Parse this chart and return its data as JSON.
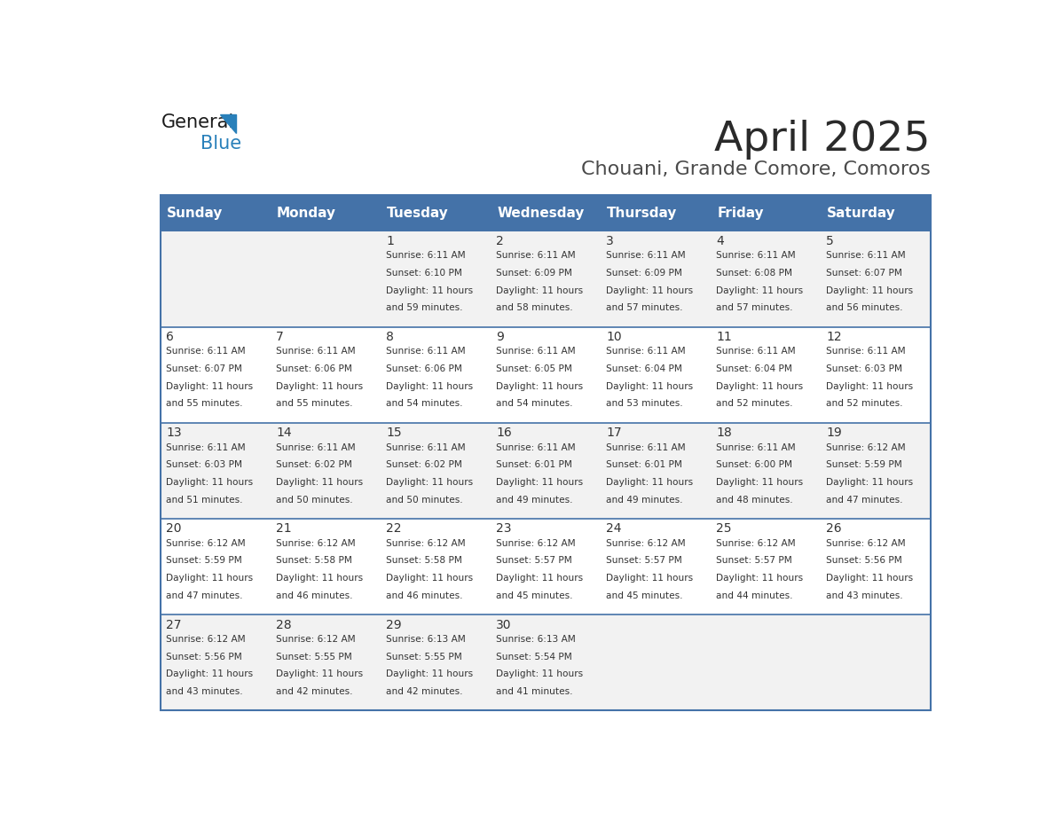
{
  "title": "April 2025",
  "subtitle": "Chouani, Grande Comore, Comoros",
  "header_bg": "#4472A8",
  "header_text_color": "#FFFFFF",
  "row_bg_even": "#FFFFFF",
  "row_bg_odd": "#F2F2F2",
  "day_names": [
    "Sunday",
    "Monday",
    "Tuesday",
    "Wednesday",
    "Thursday",
    "Friday",
    "Saturday"
  ],
  "days": [
    {
      "day": 1,
      "col": 2,
      "row": 0,
      "sunrise": "6:11 AM",
      "sunset": "6:10 PM",
      "daylight": "11 hours and 59 minutes."
    },
    {
      "day": 2,
      "col": 3,
      "row": 0,
      "sunrise": "6:11 AM",
      "sunset": "6:09 PM",
      "daylight": "11 hours and 58 minutes."
    },
    {
      "day": 3,
      "col": 4,
      "row": 0,
      "sunrise": "6:11 AM",
      "sunset": "6:09 PM",
      "daylight": "11 hours and 57 minutes."
    },
    {
      "day": 4,
      "col": 5,
      "row": 0,
      "sunrise": "6:11 AM",
      "sunset": "6:08 PM",
      "daylight": "11 hours and 57 minutes."
    },
    {
      "day": 5,
      "col": 6,
      "row": 0,
      "sunrise": "6:11 AM",
      "sunset": "6:07 PM",
      "daylight": "11 hours and 56 minutes."
    },
    {
      "day": 6,
      "col": 0,
      "row": 1,
      "sunrise": "6:11 AM",
      "sunset": "6:07 PM",
      "daylight": "11 hours and 55 minutes."
    },
    {
      "day": 7,
      "col": 1,
      "row": 1,
      "sunrise": "6:11 AM",
      "sunset": "6:06 PM",
      "daylight": "11 hours and 55 minutes."
    },
    {
      "day": 8,
      "col": 2,
      "row": 1,
      "sunrise": "6:11 AM",
      "sunset": "6:06 PM",
      "daylight": "11 hours and 54 minutes."
    },
    {
      "day": 9,
      "col": 3,
      "row": 1,
      "sunrise": "6:11 AM",
      "sunset": "6:05 PM",
      "daylight": "11 hours and 54 minutes."
    },
    {
      "day": 10,
      "col": 4,
      "row": 1,
      "sunrise": "6:11 AM",
      "sunset": "6:04 PM",
      "daylight": "11 hours and 53 minutes."
    },
    {
      "day": 11,
      "col": 5,
      "row": 1,
      "sunrise": "6:11 AM",
      "sunset": "6:04 PM",
      "daylight": "11 hours and 52 minutes."
    },
    {
      "day": 12,
      "col": 6,
      "row": 1,
      "sunrise": "6:11 AM",
      "sunset": "6:03 PM",
      "daylight": "11 hours and 52 minutes."
    },
    {
      "day": 13,
      "col": 0,
      "row": 2,
      "sunrise": "6:11 AM",
      "sunset": "6:03 PM",
      "daylight": "11 hours and 51 minutes."
    },
    {
      "day": 14,
      "col": 1,
      "row": 2,
      "sunrise": "6:11 AM",
      "sunset": "6:02 PM",
      "daylight": "11 hours and 50 minutes."
    },
    {
      "day": 15,
      "col": 2,
      "row": 2,
      "sunrise": "6:11 AM",
      "sunset": "6:02 PM",
      "daylight": "11 hours and 50 minutes."
    },
    {
      "day": 16,
      "col": 3,
      "row": 2,
      "sunrise": "6:11 AM",
      "sunset": "6:01 PM",
      "daylight": "11 hours and 49 minutes."
    },
    {
      "day": 17,
      "col": 4,
      "row": 2,
      "sunrise": "6:11 AM",
      "sunset": "6:01 PM",
      "daylight": "11 hours and 49 minutes."
    },
    {
      "day": 18,
      "col": 5,
      "row": 2,
      "sunrise": "6:11 AM",
      "sunset": "6:00 PM",
      "daylight": "11 hours and 48 minutes."
    },
    {
      "day": 19,
      "col": 6,
      "row": 2,
      "sunrise": "6:12 AM",
      "sunset": "5:59 PM",
      "daylight": "11 hours and 47 minutes."
    },
    {
      "day": 20,
      "col": 0,
      "row": 3,
      "sunrise": "6:12 AM",
      "sunset": "5:59 PM",
      "daylight": "11 hours and 47 minutes."
    },
    {
      "day": 21,
      "col": 1,
      "row": 3,
      "sunrise": "6:12 AM",
      "sunset": "5:58 PM",
      "daylight": "11 hours and 46 minutes."
    },
    {
      "day": 22,
      "col": 2,
      "row": 3,
      "sunrise": "6:12 AM",
      "sunset": "5:58 PM",
      "daylight": "11 hours and 46 minutes."
    },
    {
      "day": 23,
      "col": 3,
      "row": 3,
      "sunrise": "6:12 AM",
      "sunset": "5:57 PM",
      "daylight": "11 hours and 45 minutes."
    },
    {
      "day": 24,
      "col": 4,
      "row": 3,
      "sunrise": "6:12 AM",
      "sunset": "5:57 PM",
      "daylight": "11 hours and 45 minutes."
    },
    {
      "day": 25,
      "col": 5,
      "row": 3,
      "sunrise": "6:12 AM",
      "sunset": "5:57 PM",
      "daylight": "11 hours and 44 minutes."
    },
    {
      "day": 26,
      "col": 6,
      "row": 3,
      "sunrise": "6:12 AM",
      "sunset": "5:56 PM",
      "daylight": "11 hours and 43 minutes."
    },
    {
      "day": 27,
      "col": 0,
      "row": 4,
      "sunrise": "6:12 AM",
      "sunset": "5:56 PM",
      "daylight": "11 hours and 43 minutes."
    },
    {
      "day": 28,
      "col": 1,
      "row": 4,
      "sunrise": "6:12 AM",
      "sunset": "5:55 PM",
      "daylight": "11 hours and 42 minutes."
    },
    {
      "day": 29,
      "col": 2,
      "row": 4,
      "sunrise": "6:13 AM",
      "sunset": "5:55 PM",
      "daylight": "11 hours and 42 minutes."
    },
    {
      "day": 30,
      "col": 3,
      "row": 4,
      "sunrise": "6:13 AM",
      "sunset": "5:54 PM",
      "daylight": "11 hours and 41 minutes."
    }
  ],
  "num_rows": 5,
  "num_cols": 7,
  "logo_color_general": "#1a1a1a",
  "logo_color_blue": "#2980BA",
  "logo_triangle_color": "#2980BA",
  "title_color": "#2a2a2a",
  "subtitle_color": "#4a4a4a",
  "cell_text_color": "#333333",
  "border_color": "#4472A8",
  "grid_line_color": "#4472A8"
}
